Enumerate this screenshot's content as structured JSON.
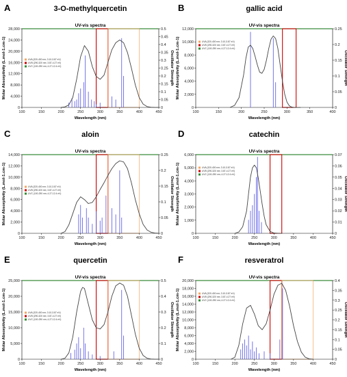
{
  "chart_data": [
    {
      "id": "A",
      "panel_letter": "A",
      "title": "3-O-methylquercetin",
      "subtitle": "UV-vis spectra",
      "type": "line",
      "xlabel": "Wavelength (nm)",
      "ylabel": "Molar Absorptivity (L.mol-1.cm-1)",
      "y2label": "Oscillator Strength",
      "xlim": [
        100,
        450
      ],
      "xticks": [
        100,
        150,
        200,
        250,
        300,
        350,
        400,
        450
      ],
      "ylim": [
        0,
        28000
      ],
      "yticks": [
        0,
        4000,
        8000,
        12000,
        16000,
        20000,
        24000,
        28000
      ],
      "yticklabels": [
        "0",
        "4,000",
        "8,000",
        "12,000",
        "16,000",
        "20,000",
        "24,000",
        "28,000"
      ],
      "y2lim": [
        0,
        0.5
      ],
      "y2ticks": [
        0,
        0.05,
        0.1,
        0.15,
        0.2,
        0.25,
        0.3,
        0.35,
        0.4,
        0.45,
        0.5
      ],
      "y2ticklabels": [
        "0",
        "0.05",
        "0.1",
        "0.15",
        "0.2",
        "0.25",
        "0.3",
        "0.35",
        "0.4",
        "0.45",
        "0.5"
      ],
      "regions": [
        {
          "from": 290,
          "to": 320,
          "color": "#cc0000"
        },
        {
          "from": 320,
          "to": 400,
          "color": "#f4a460"
        }
      ],
      "curve": {
        "x": [
          200,
          210,
          220,
          230,
          240,
          250,
          260,
          270,
          280,
          290,
          300,
          310,
          320,
          330,
          340,
          350,
          360,
          370,
          380,
          390,
          400,
          410,
          420,
          430,
          440,
          450
        ],
        "y": [
          0,
          200,
          900,
          3500,
          10000,
          18000,
          22000,
          20000,
          14500,
          11000,
          10000,
          11500,
          16000,
          20500,
          23000,
          24000,
          23000,
          19500,
          14000,
          8000,
          3500,
          1200,
          300,
          80,
          10,
          0
        ]
      },
      "sticks": {
        "x": [
          220,
          228,
          235,
          240,
          245,
          250,
          258,
          262,
          270,
          278,
          285,
          290,
          300,
          330,
          340,
          355,
          360
        ],
        "h": [
          0.03,
          0.06,
          0.04,
          0.05,
          0.09,
          0.12,
          0.16,
          0.33,
          0.1,
          0.05,
          0.04,
          0.02,
          0.03,
          0.07,
          0.05,
          0.44,
          0.2
        ]
      },
      "legend": [
        "UVA (320-400 nm; 3.10-3.87 eV)",
        "UVB (290-320 nm; 3.87-4.27 eV)",
        "UVC (100-290 nm; 4.27-12.4 eV)"
      ]
    },
    {
      "id": "B",
      "panel_letter": "B",
      "title": "gallic acid",
      "subtitle": "UV-vis spectra",
      "type": "line",
      "xlabel": "Wavelength (nm)",
      "ylabel": "Molar Absorptivity (L.mol-1.cm-1)",
      "y2label": "Oscillator Strength",
      "xlim": [
        100,
        400
      ],
      "xticks": [
        100,
        150,
        200,
        250,
        300,
        350,
        400
      ],
      "ylim": [
        0,
        12000
      ],
      "yticks": [
        0,
        2000,
        4000,
        6000,
        8000,
        10000,
        12000
      ],
      "yticklabels": [
        "0",
        "2,000",
        "4,000",
        "6,000",
        "8,000",
        "10,000",
        "12,000"
      ],
      "y2lim": [
        0,
        0.25
      ],
      "y2ticks": [
        0,
        0.05,
        0.1,
        0.15,
        0.2,
        0.25
      ],
      "y2ticklabels": [
        "0",
        "0.05",
        "0.1",
        "0.15",
        "0.2",
        "0.25"
      ],
      "regions": [
        {
          "from": 290,
          "to": 320,
          "color": "#cc0000"
        }
      ],
      "curve": {
        "x": [
          175,
          185,
          195,
          205,
          210,
          215,
          220,
          225,
          230,
          235,
          240,
          245,
          250,
          255,
          260,
          265,
          270,
          275,
          280,
          285,
          290,
          295,
          300,
          305,
          310,
          315,
          320,
          330
        ],
        "y": [
          0,
          300,
          1500,
          5000,
          7500,
          9200,
          9500,
          9000,
          7800,
          6500,
          5400,
          5200,
          5800,
          7200,
          9000,
          10400,
          10900,
          10500,
          9000,
          6500,
          4000,
          2000,
          800,
          250,
          60,
          10,
          0,
          0
        ]
      },
      "sticks": {
        "x": [
          220,
          270,
          275
        ],
        "h": [
          0.24,
          0.22,
          0.08
        ]
      },
      "legend": [
        "UVA (320-400 nm; 3.10-3.87 eV)",
        "UVB (290-320 nm; 3.87-4.27 eV)",
        "UVC (100-290 nm; 4.27-12.4 eV)"
      ]
    },
    {
      "id": "C",
      "panel_letter": "C",
      "title": "aloin",
      "subtitle": "UV-vis spectra",
      "type": "line",
      "xlabel": "Wavelength (nm)",
      "ylabel": "Molar Absorptivity (L.mol-1.cm-1)",
      "y2label": "Oscillator Strength",
      "xlim": [
        100,
        450
      ],
      "xticks": [
        100,
        150,
        200,
        250,
        300,
        350,
        400,
        450
      ],
      "ylim": [
        0,
        14000
      ],
      "yticks": [
        0,
        2000,
        4000,
        6000,
        8000,
        10000,
        12000,
        14000
      ],
      "yticklabels": [
        "0",
        "2,000",
        "4,000",
        "6,000",
        "8,000",
        "10,000",
        "12,000",
        "14,000"
      ],
      "y2lim": [
        0,
        0.25
      ],
      "y2ticks": [
        0,
        0.05,
        0.1,
        0.15,
        0.2,
        0.25
      ],
      "y2ticklabels": [
        "0",
        "0.05",
        "0.1",
        "0.15",
        "0.2",
        "0.25"
      ],
      "regions": [
        {
          "from": 290,
          "to": 320,
          "color": "#cc0000"
        },
        {
          "from": 320,
          "to": 400,
          "color": "#f4a460"
        }
      ],
      "curve": {
        "x": [
          200,
          210,
          220,
          230,
          240,
          250,
          260,
          270,
          280,
          290,
          300,
          310,
          320,
          330,
          340,
          350,
          360,
          370,
          380,
          390,
          400,
          410,
          420,
          430,
          440,
          450
        ],
        "y": [
          0,
          300,
          1500,
          3500,
          5500,
          6500,
          6000,
          5300,
          5500,
          6500,
          7800,
          9000,
          10300,
          11500,
          12400,
          12900,
          12700,
          11500,
          9000,
          6000,
          3500,
          1600,
          600,
          200,
          50,
          0
        ]
      },
      "sticks": {
        "x": [
          245,
          250,
          255,
          265,
          270,
          280,
          290,
          300,
          305,
          315,
          330,
          340,
          350,
          355
        ],
        "h": [
          0.06,
          0.09,
          0.05,
          0.08,
          0.05,
          0.03,
          0.07,
          0.04,
          0.05,
          0.12,
          0.08,
          0.06,
          0.2,
          0.05
        ]
      },
      "legend": [
        "UVA (320-400 nm; 3.10-3.87 eV)",
        "UVB (290-320 nm; 3.87-4.27 eV)",
        "UVC (100-290 nm; 4.27-12.4 eV)"
      ]
    },
    {
      "id": "D",
      "panel_letter": "D",
      "title": "catechin",
      "subtitle": "UV-vis spectra",
      "type": "line",
      "xlabel": "Wavelength (nm)",
      "ylabel": "Molar Absorptivity (L.mol-1.cm-1)",
      "y2label": "Oscillator Strength",
      "xlim": [
        100,
        450
      ],
      "xticks": [
        100,
        150,
        200,
        250,
        300,
        350,
        400,
        450
      ],
      "ylim": [
        0,
        6000
      ],
      "yticks": [
        0,
        1000,
        2000,
        3000,
        4000,
        5000,
        6000
      ],
      "yticklabels": [
        "0",
        "1,000",
        "2,000",
        "3,000",
        "4,000",
        "5,000",
        "6,000"
      ],
      "y2lim": [
        0,
        0.07
      ],
      "y2ticks": [
        0,
        0.01,
        0.02,
        0.03,
        0.04,
        0.05,
        0.06,
        0.07
      ],
      "y2ticklabels": [
        "0",
        "0.01",
        "0.02",
        "0.03",
        "0.04",
        "0.05",
        "0.06",
        "0.07"
      ],
      "regions": [
        {
          "from": 290,
          "to": 320,
          "color": "#cc0000"
        }
      ],
      "curve": {
        "x": [
          200,
          210,
          220,
          230,
          235,
          240,
          245,
          250,
          255,
          260,
          265,
          270,
          275,
          280,
          290,
          300,
          310,
          320
        ],
        "y": [
          0,
          100,
          500,
          1700,
          3000,
          4300,
          5000,
          5200,
          5000,
          4200,
          3200,
          2200,
          1300,
          650,
          150,
          20,
          0,
          0
        ]
      },
      "sticks": {
        "x": [
          235,
          240,
          245,
          250,
          255,
          258,
          262,
          268
        ],
        "h": [
          0.012,
          0.02,
          0.025,
          0.035,
          0.05,
          0.068,
          0.02,
          0.01
        ]
      },
      "legend": [
        "UVA (320-400 nm; 3.10-3.87 eV)",
        "UVB (290-320 nm; 3.87-4.27 eV)",
        "UVC (100-290 nm; 4.27-12.4 eV)"
      ]
    },
    {
      "id": "E",
      "panel_letter": "E",
      "title": "quercetin",
      "subtitle": "UV-vis spectra",
      "type": "line",
      "xlabel": "Wavelength (nm)",
      "ylabel": "Molar Absorptivity (L.mol-1.cm-1)",
      "y2label": "Oscillator Strength",
      "xlim": [
        100,
        450
      ],
      "xticks": [
        100,
        150,
        200,
        250,
        300,
        350,
        400,
        450
      ],
      "ylim": [
        0,
        25000
      ],
      "yticks": [
        0,
        5000,
        10000,
        15000,
        20000,
        25000
      ],
      "yticklabels": [
        "0",
        "5,000",
        "10,000",
        "15,000",
        "20,000",
        "25,000"
      ],
      "y2lim": [
        0,
        0.5
      ],
      "y2ticks": [
        0,
        0.1,
        0.2,
        0.3,
        0.4,
        0.5
      ],
      "y2ticklabels": [
        "0",
        "0.1",
        "0.2",
        "0.3",
        "0.4",
        "0.5"
      ],
      "regions": [
        {
          "from": 290,
          "to": 320,
          "color": "#cc0000"
        },
        {
          "from": 320,
          "to": 400,
          "color": "#f4a460"
        }
      ],
      "curve": {
        "x": [
          200,
          210,
          220,
          230,
          240,
          250,
          255,
          260,
          270,
          280,
          290,
          300,
          310,
          320,
          330,
          340,
          350,
          360,
          370,
          380,
          390,
          400,
          410,
          420,
          430,
          440,
          450
        ],
        "y": [
          0,
          300,
          2000,
          7000,
          15000,
          21500,
          22800,
          22500,
          17500,
          12500,
          10000,
          9600,
          11000,
          15000,
          20000,
          23300,
          24200,
          23500,
          20000,
          14000,
          8000,
          3500,
          1200,
          300,
          60,
          10,
          0
        ]
      },
      "sticks": {
        "x": [
          225,
          235,
          240,
          245,
          250,
          258,
          262,
          270,
          280,
          300,
          335,
          355,
          360
        ],
        "h": [
          0.04,
          0.06,
          0.1,
          0.14,
          0.07,
          0.2,
          0.1,
          0.05,
          0.03,
          0.02,
          0.05,
          0.44,
          0.15
        ]
      },
      "legend": [
        "UVA (320-400 nm; 3.10-3.87 eV)",
        "UVB (290-320 nm; 3.87-4.27 eV)",
        "UVC (100-290 nm; 4.27-12.4 eV)"
      ]
    },
    {
      "id": "F",
      "panel_letter": "F",
      "title": "resveratrol",
      "subtitle": "UV-vis spectra",
      "type": "line",
      "xlabel": "Wavelength (nm)",
      "ylabel": "Molar Absorptivity (L.mol-1.cm-1)",
      "y2label": "Oscillator Strength",
      "xlim": [
        100,
        450
      ],
      "xticks": [
        100,
        150,
        200,
        250,
        300,
        350,
        400,
        450
      ],
      "ylim": [
        0,
        20000
      ],
      "yticks": [
        0,
        2000,
        4000,
        6000,
        8000,
        10000,
        12000,
        14000,
        16000,
        18000,
        20000
      ],
      "yticklabels": [
        "0",
        "2,000",
        "4,000",
        "6,000",
        "8,000",
        "10,000",
        "12,000",
        "14,000",
        "16,000",
        "18,000",
        "20,000"
      ],
      "y2lim": [
        0,
        0.4
      ],
      "y2ticks": [
        0,
        0.05,
        0.1,
        0.15,
        0.2,
        0.25,
        0.3,
        0.35,
        0.4
      ],
      "y2ticklabels": [
        "0",
        "0.05",
        "0.1",
        "0.15",
        "0.2",
        "0.25",
        "0.3",
        "0.35",
        "0.4"
      ],
      "regions": [
        {
          "from": 290,
          "to": 320,
          "color": "#cc0000"
        },
        {
          "from": 320,
          "to": 400,
          "color": "#f4a460"
        }
      ],
      "curve": {
        "x": [
          190,
          200,
          210,
          220,
          230,
          240,
          250,
          260,
          270,
          280,
          290,
          300,
          310,
          320,
          330,
          340,
          350,
          360,
          370,
          380,
          390,
          400
        ],
        "y": [
          0,
          500,
          3500,
          9000,
          13000,
          13700,
          11500,
          8500,
          7500,
          9000,
          12500,
          16500,
          18800,
          19300,
          17500,
          13500,
          8500,
          4500,
          1800,
          500,
          100,
          0
        ]
      },
      "sticks": {
        "x": [
          215,
          220,
          225,
          230,
          235,
          240,
          245,
          250,
          255,
          262,
          275,
          290,
          315,
          322
        ],
        "h": [
          0.05,
          0.08,
          0.1,
          0.07,
          0.12,
          0.05,
          0.09,
          0.04,
          0.06,
          0.03,
          0.04,
          0.03,
          0.1,
          0.36
        ]
      },
      "legend": [
        "UVA (320-400 nm; 3.10-3.87 eV)",
        "UVB (290-320 nm; 3.87-4.27 eV)",
        "UVC (100-290 nm; 4.27-12.4 eV)"
      ]
    }
  ],
  "colors": {
    "curve": "#444444",
    "stick": "#6666e8",
    "frame": "#3a8a3a",
    "uva": "#f4a460",
    "uvb": "#cc0000",
    "uvc": "#2e8b2e",
    "grid": "#aaaaaa"
  }
}
